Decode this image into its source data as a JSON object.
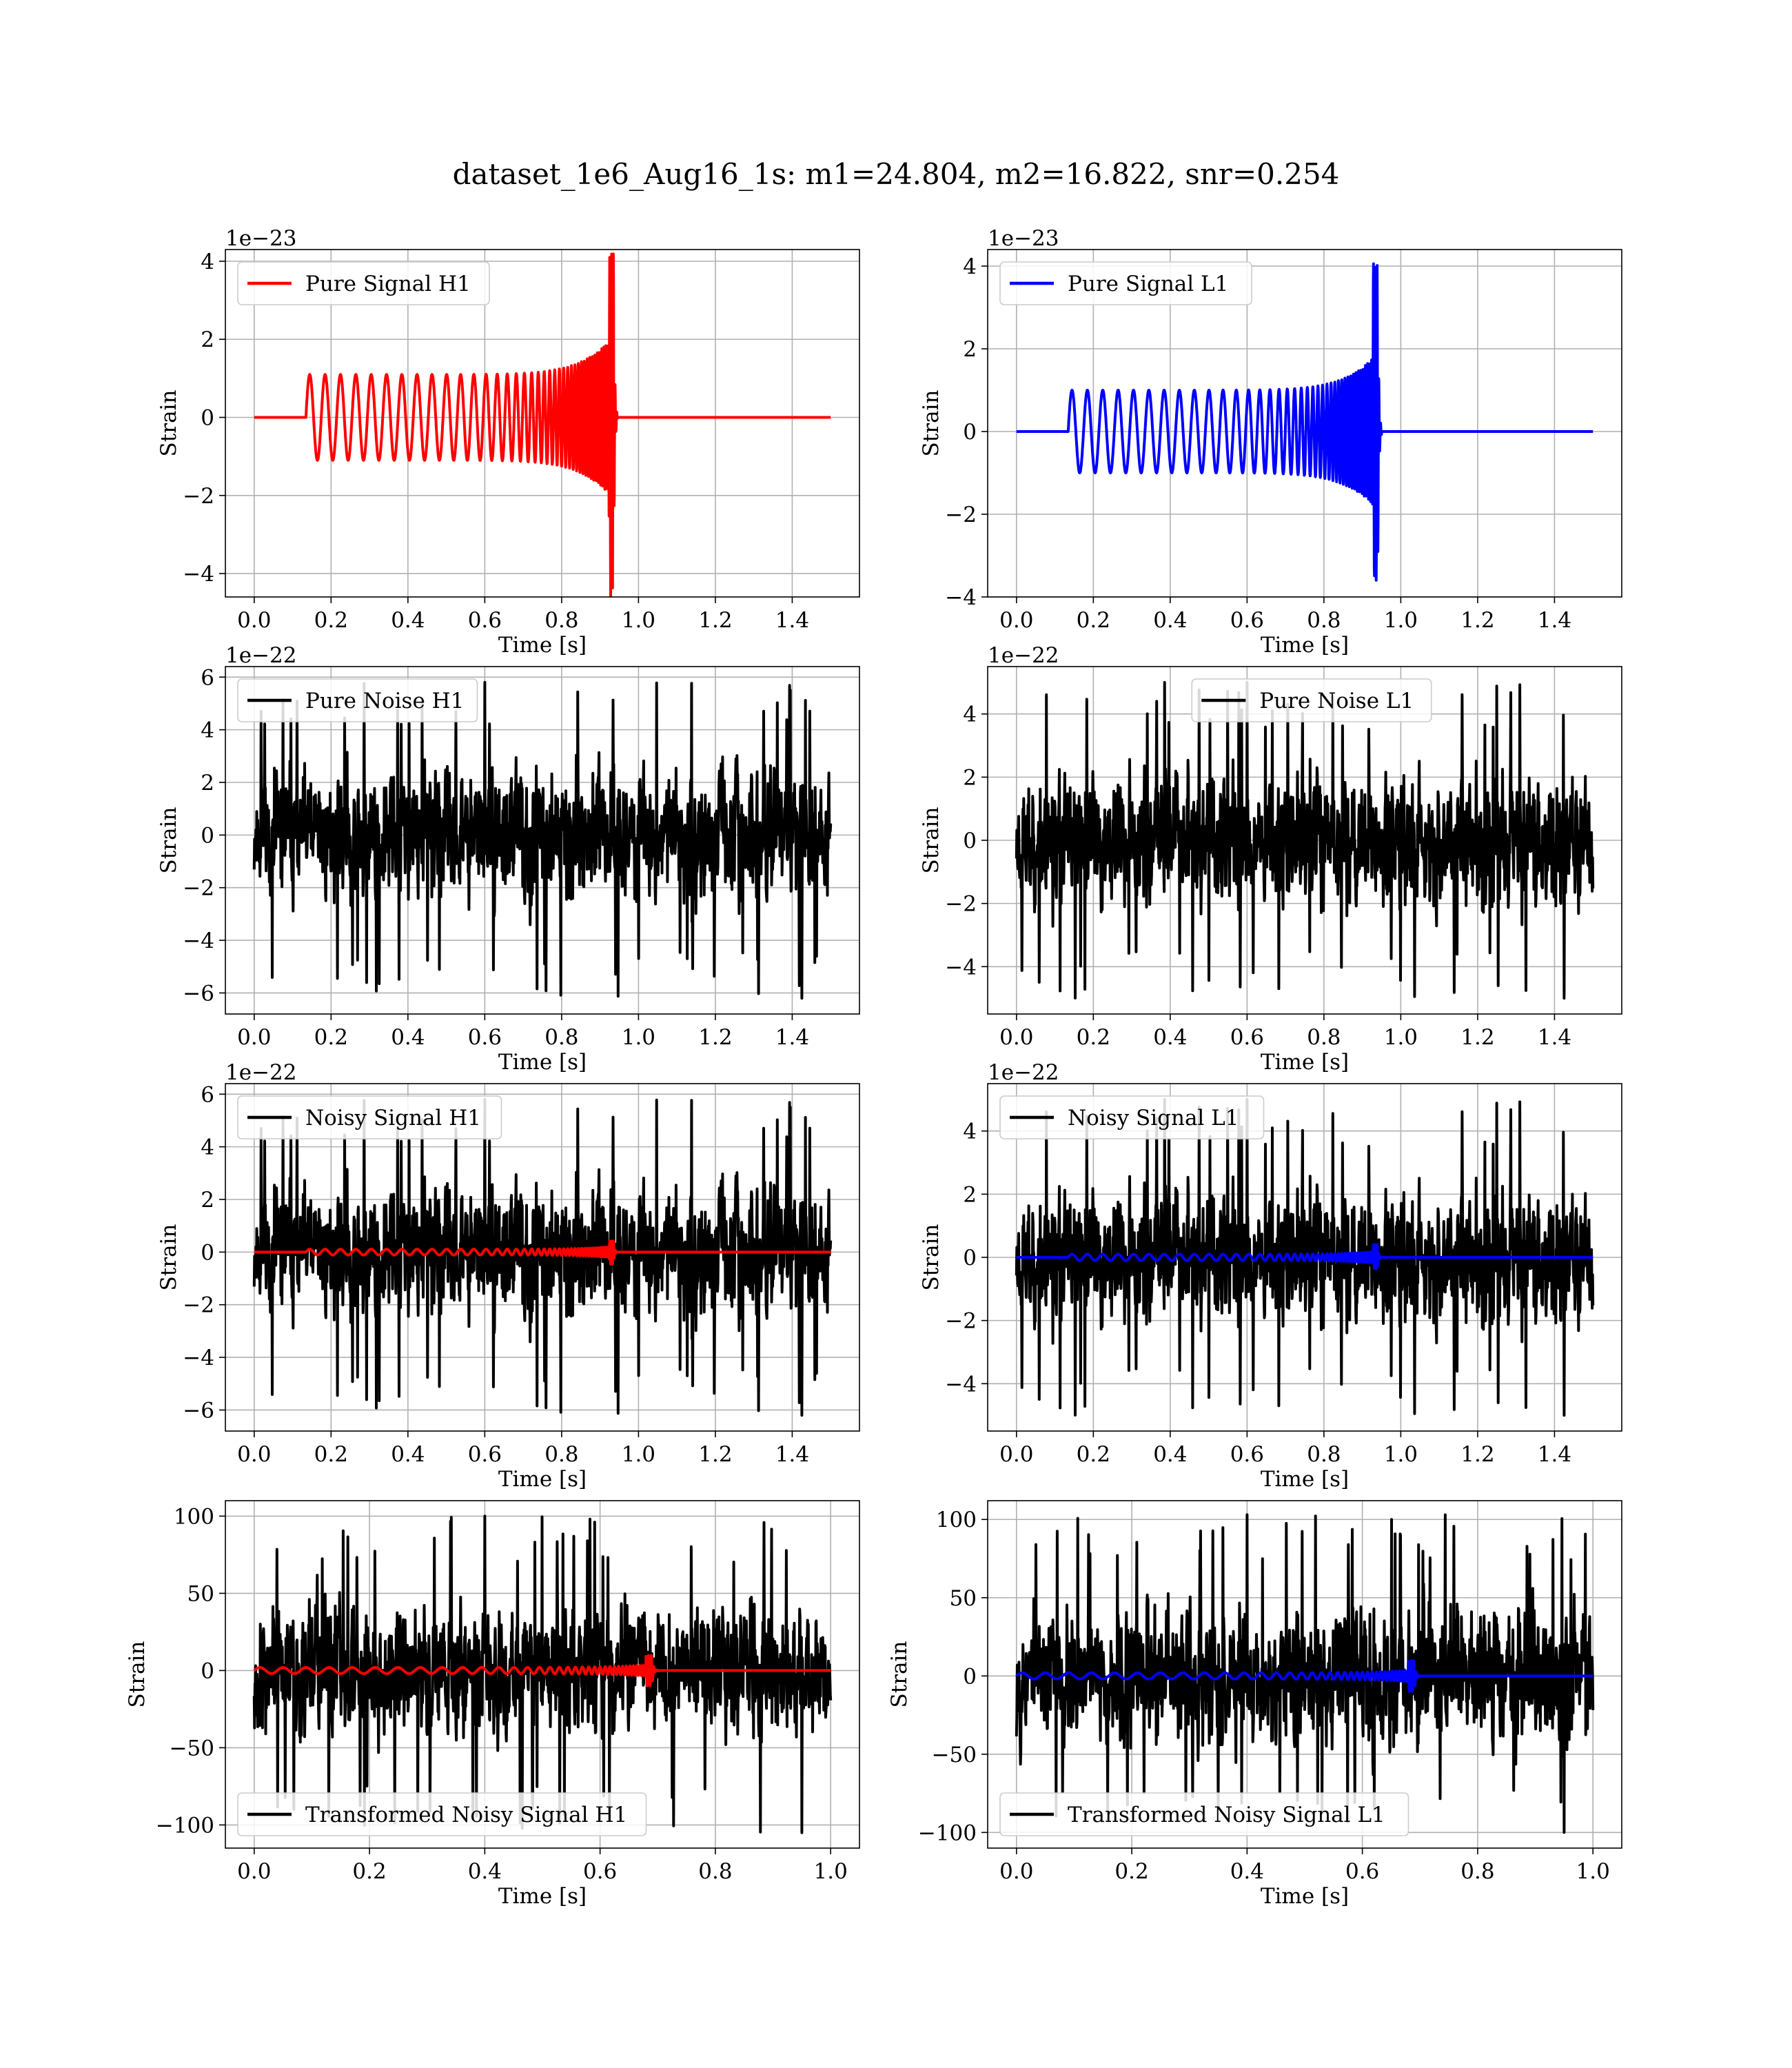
{
  "figure": {
    "title": "dataset_1e6_Aug16_1s: m1=24.804, m2=16.822, snr=0.254"
  },
  "colors": {
    "h1_signal": "#ff0000",
    "l1_signal": "#0000ff",
    "noise": "#000000",
    "grid": "#b0b0b0"
  },
  "chart_data": [
    {
      "id": "pure-signal-h1",
      "type": "line",
      "xlabel": "Time [s]",
      "ylabel": "Strain",
      "offset_text": "1e−23",
      "xlim": [
        -0.075,
        1.575
      ],
      "ylim": [
        -4.6,
        4.3
      ],
      "xticks": [
        0.0,
        0.2,
        0.4,
        0.6,
        0.8,
        1.0,
        1.2,
        1.4
      ],
      "xtick_labels": [
        "0.0",
        "0.2",
        "0.4",
        "0.6",
        "0.8",
        "1.0",
        "1.2",
        "1.4"
      ],
      "yticks": [
        -4,
        -2,
        0,
        2,
        4
      ],
      "ytick_labels": [
        "−4",
        "−2",
        "0",
        "2",
        "4"
      ],
      "legend": {
        "position": "upper-left",
        "color": "#ff0000",
        "label": "Pure Signal H1"
      },
      "series": [
        {
          "kind": "chirp",
          "color": "#ff0000",
          "t_start": 0.0,
          "t_end": 1.5,
          "chirp_start": 0.135,
          "merger": 0.935,
          "base_amp": 1.1,
          "peak_amp": 4.2,
          "trough_amp": -4.6,
          "f0": 25,
          "f_end": 220
        }
      ]
    },
    {
      "id": "pure-signal-l1",
      "type": "line",
      "xlabel": "Time [s]",
      "ylabel": "Strain",
      "offset_text": "1e−23",
      "xlim": [
        -0.075,
        1.575
      ],
      "ylim": [
        -4.0,
        4.4
      ],
      "xticks": [
        0.0,
        0.2,
        0.4,
        0.6,
        0.8,
        1.0,
        1.2,
        1.4
      ],
      "xtick_labels": [
        "0.0",
        "0.2",
        "0.4",
        "0.6",
        "0.8",
        "1.0",
        "1.2",
        "1.4"
      ],
      "yticks": [
        -4,
        -2,
        0,
        2,
        4
      ],
      "ytick_labels": [
        "−4",
        "−2",
        "0",
        "2",
        "4"
      ],
      "legend": {
        "position": "upper-left",
        "color": "#0000ff",
        "label": "Pure Signal L1"
      },
      "series": [
        {
          "kind": "chirp",
          "color": "#0000ff",
          "t_start": 0.0,
          "t_end": 1.5,
          "chirp_start": 0.135,
          "merger": 0.94,
          "base_amp": 1.0,
          "peak_amp": 4.1,
          "trough_amp": -3.6,
          "f0": 25,
          "f_end": 220
        }
      ]
    },
    {
      "id": "pure-noise-h1",
      "type": "line",
      "xlabel": "Time [s]",
      "ylabel": "Strain",
      "offset_text": "1e−22",
      "xlim": [
        -0.075,
        1.575
      ],
      "ylim": [
        -6.8,
        6.4
      ],
      "xticks": [
        0.0,
        0.2,
        0.4,
        0.6,
        0.8,
        1.0,
        1.2,
        1.4
      ],
      "xtick_labels": [
        "0.0",
        "0.2",
        "0.4",
        "0.6",
        "0.8",
        "1.0",
        "1.2",
        "1.4"
      ],
      "yticks": [
        -6,
        -4,
        -2,
        0,
        2,
        4,
        6
      ],
      "ytick_labels": [
        "−6",
        "−4",
        "−2",
        "0",
        "2",
        "4",
        "6"
      ],
      "legend": {
        "position": "upper-left",
        "color": "#000000",
        "label": "Pure Noise H1"
      },
      "series": [
        {
          "kind": "noise",
          "color": "#000000",
          "t_start": 0.0,
          "t_end": 1.5,
          "max": 5.8,
          "min": -6.2,
          "seed": 11
        }
      ]
    },
    {
      "id": "pure-noise-l1",
      "type": "line",
      "xlabel": "Time [s]",
      "ylabel": "Strain",
      "offset_text": "1e−22",
      "xlim": [
        -0.075,
        1.575
      ],
      "ylim": [
        -5.5,
        5.5
      ],
      "xticks": [
        0.0,
        0.2,
        0.4,
        0.6,
        0.8,
        1.0,
        1.2,
        1.4
      ],
      "xtick_labels": [
        "0.0",
        "0.2",
        "0.4",
        "0.6",
        "0.8",
        "1.0",
        "1.2",
        "1.4"
      ],
      "yticks": [
        -4,
        -2,
        0,
        2,
        4
      ],
      "ytick_labels": [
        "−4",
        "−2",
        "0",
        "2",
        "4"
      ],
      "legend": {
        "position": "upper-center",
        "color": "#000000",
        "label": "Pure Noise L1"
      },
      "series": [
        {
          "kind": "noise",
          "color": "#000000",
          "t_start": 0.0,
          "t_end": 1.5,
          "max": 5.0,
          "min": -5.0,
          "seed": 23
        }
      ]
    },
    {
      "id": "noisy-signal-h1",
      "type": "line",
      "xlabel": "Time [s]",
      "ylabel": "Strain",
      "offset_text": "1e−22",
      "xlim": [
        -0.075,
        1.575
      ],
      "ylim": [
        -6.8,
        6.4
      ],
      "xticks": [
        0.0,
        0.2,
        0.4,
        0.6,
        0.8,
        1.0,
        1.2,
        1.4
      ],
      "xtick_labels": [
        "0.0",
        "0.2",
        "0.4",
        "0.6",
        "0.8",
        "1.0",
        "1.2",
        "1.4"
      ],
      "yticks": [
        -6,
        -4,
        -2,
        0,
        2,
        4,
        6
      ],
      "ytick_labels": [
        "−6",
        "−4",
        "−2",
        "0",
        "2",
        "4",
        "6"
      ],
      "legend": {
        "position": "upper-left",
        "color": "#000000",
        "label": "Noisy Signal H1"
      },
      "series": [
        {
          "kind": "noise",
          "color": "#000000",
          "t_start": 0.0,
          "t_end": 1.5,
          "max": 5.8,
          "min": -6.2,
          "seed": 11
        },
        {
          "kind": "chirp",
          "color": "#ff0000",
          "t_start": 0.0,
          "t_end": 1.5,
          "chirp_start": 0.135,
          "merger": 0.935,
          "base_amp": 0.11,
          "peak_amp": 0.42,
          "trough_amp": -0.46,
          "f0": 25,
          "f_end": 220
        }
      ]
    },
    {
      "id": "noisy-signal-l1",
      "type": "line",
      "xlabel": "Time [s]",
      "ylabel": "Strain",
      "offset_text": "1e−22",
      "xlim": [
        -0.075,
        1.575
      ],
      "ylim": [
        -5.5,
        5.5
      ],
      "xticks": [
        0.0,
        0.2,
        0.4,
        0.6,
        0.8,
        1.0,
        1.2,
        1.4
      ],
      "xtick_labels": [
        "0.0",
        "0.2",
        "0.4",
        "0.6",
        "0.8",
        "1.0",
        "1.2",
        "1.4"
      ],
      "yticks": [
        -4,
        -2,
        0,
        2,
        4
      ],
      "ytick_labels": [
        "−4",
        "−2",
        "0",
        "2",
        "4"
      ],
      "legend": {
        "position": "upper-left",
        "color": "#000000",
        "label": "Noisy Signal L1"
      },
      "series": [
        {
          "kind": "noise",
          "color": "#000000",
          "t_start": 0.0,
          "t_end": 1.5,
          "max": 5.0,
          "min": -5.0,
          "seed": 23
        },
        {
          "kind": "chirp",
          "color": "#0000ff",
          "t_start": 0.0,
          "t_end": 1.5,
          "chirp_start": 0.135,
          "merger": 0.94,
          "base_amp": 0.1,
          "peak_amp": 0.41,
          "trough_amp": -0.36,
          "f0": 25,
          "f_end": 220
        }
      ]
    },
    {
      "id": "transformed-noisy-signal-h1",
      "type": "line",
      "xlabel": "Time [s]",
      "ylabel": "Strain",
      "offset_text": "",
      "xlim": [
        -0.05,
        1.05
      ],
      "ylim": [
        -115,
        110
      ],
      "xticks": [
        0.0,
        0.2,
        0.4,
        0.6,
        0.8,
        1.0
      ],
      "xtick_labels": [
        "0.0",
        "0.2",
        "0.4",
        "0.6",
        "0.8",
        "1.0"
      ],
      "yticks": [
        -100,
        -50,
        0,
        50,
        100
      ],
      "ytick_labels": [
        "−100",
        "−50",
        "0",
        "50",
        "100"
      ],
      "legend": {
        "position": "lower-left",
        "color": "#000000",
        "label": "Transformed Noisy Signal H1"
      },
      "series": [
        {
          "kind": "noise",
          "color": "#000000",
          "t_start": 0.0,
          "t_end": 1.0,
          "max": 100,
          "min": -105,
          "seed": 37
        },
        {
          "kind": "chirp",
          "color": "#ff0000",
          "t_start": 0.0,
          "t_end": 1.0,
          "chirp_start": 0.0,
          "merger": 0.69,
          "base_amp": 2.0,
          "peak_amp": 10,
          "trough_amp": -10,
          "f0": 25,
          "f_end": 220
        }
      ]
    },
    {
      "id": "transformed-noisy-signal-l1",
      "type": "line",
      "xlabel": "Time [s]",
      "ylabel": "Strain",
      "offset_text": "",
      "xlim": [
        -0.05,
        1.05
      ],
      "ylim": [
        -110,
        112
      ],
      "xticks": [
        0.0,
        0.2,
        0.4,
        0.6,
        0.8,
        1.0
      ],
      "xtick_labels": [
        "0.0",
        "0.2",
        "0.4",
        "0.6",
        "0.8",
        "1.0"
      ],
      "yticks": [
        -100,
        -50,
        0,
        50,
        100
      ],
      "ytick_labels": [
        "−100",
        "−50",
        "0",
        "50",
        "100"
      ],
      "legend": {
        "position": "lower-left",
        "color": "#000000",
        "label": "Transformed Noisy Signal L1"
      },
      "series": [
        {
          "kind": "noise",
          "color": "#000000",
          "t_start": 0.0,
          "t_end": 1.0,
          "max": 103,
          "min": -100,
          "seed": 53
        },
        {
          "kind": "chirp",
          "color": "#0000ff",
          "t_start": 0.0,
          "t_end": 1.0,
          "chirp_start": 0.0,
          "merger": 0.69,
          "base_amp": 2.0,
          "peak_amp": 10,
          "trough_amp": -10,
          "f0": 25,
          "f_end": 220
        }
      ]
    }
  ]
}
